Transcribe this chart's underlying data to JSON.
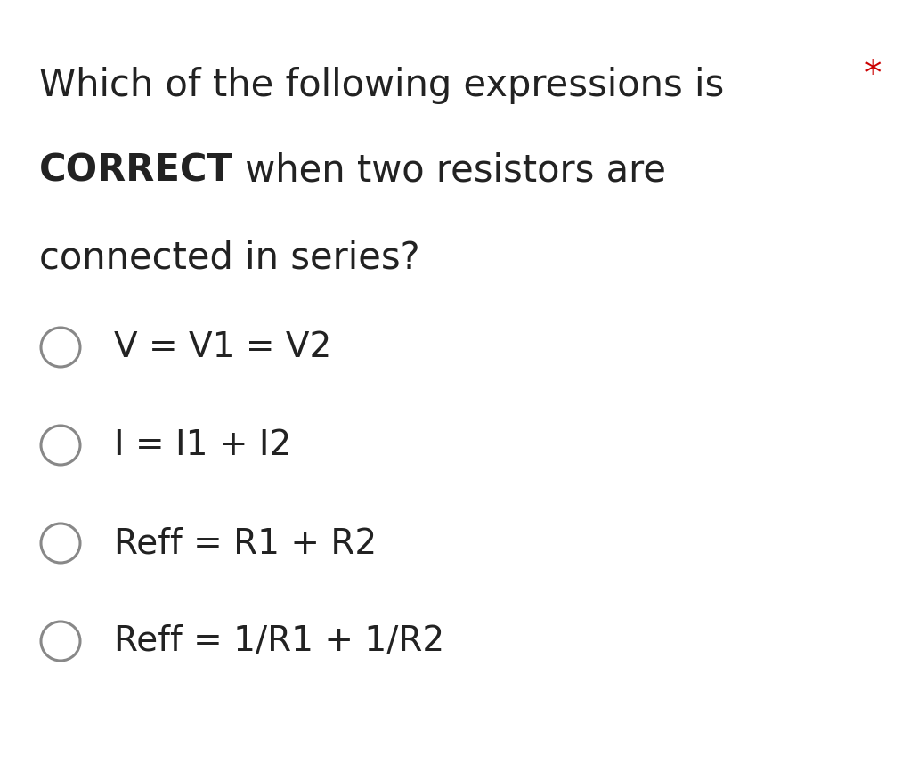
{
  "background_color": "#ffffff",
  "title_line1": "Which of the following expressions is",
  "title_line2_bold": "CORRECT",
  "title_line2_rest": " when two resistors are",
  "title_line3": "connected in series?",
  "asterisk": "*",
  "asterisk_color": "#cc0000",
  "options": [
    "V = V1 = V2",
    "I = I1 + I2",
    "Reff = R1 + R2",
    "Reff = 1/R1 + 1/R2"
  ],
  "circle_color": "#888888",
  "text_color": "#222222",
  "font_size_title": 30,
  "font_size_options": 28,
  "font_size_asterisk": 28
}
